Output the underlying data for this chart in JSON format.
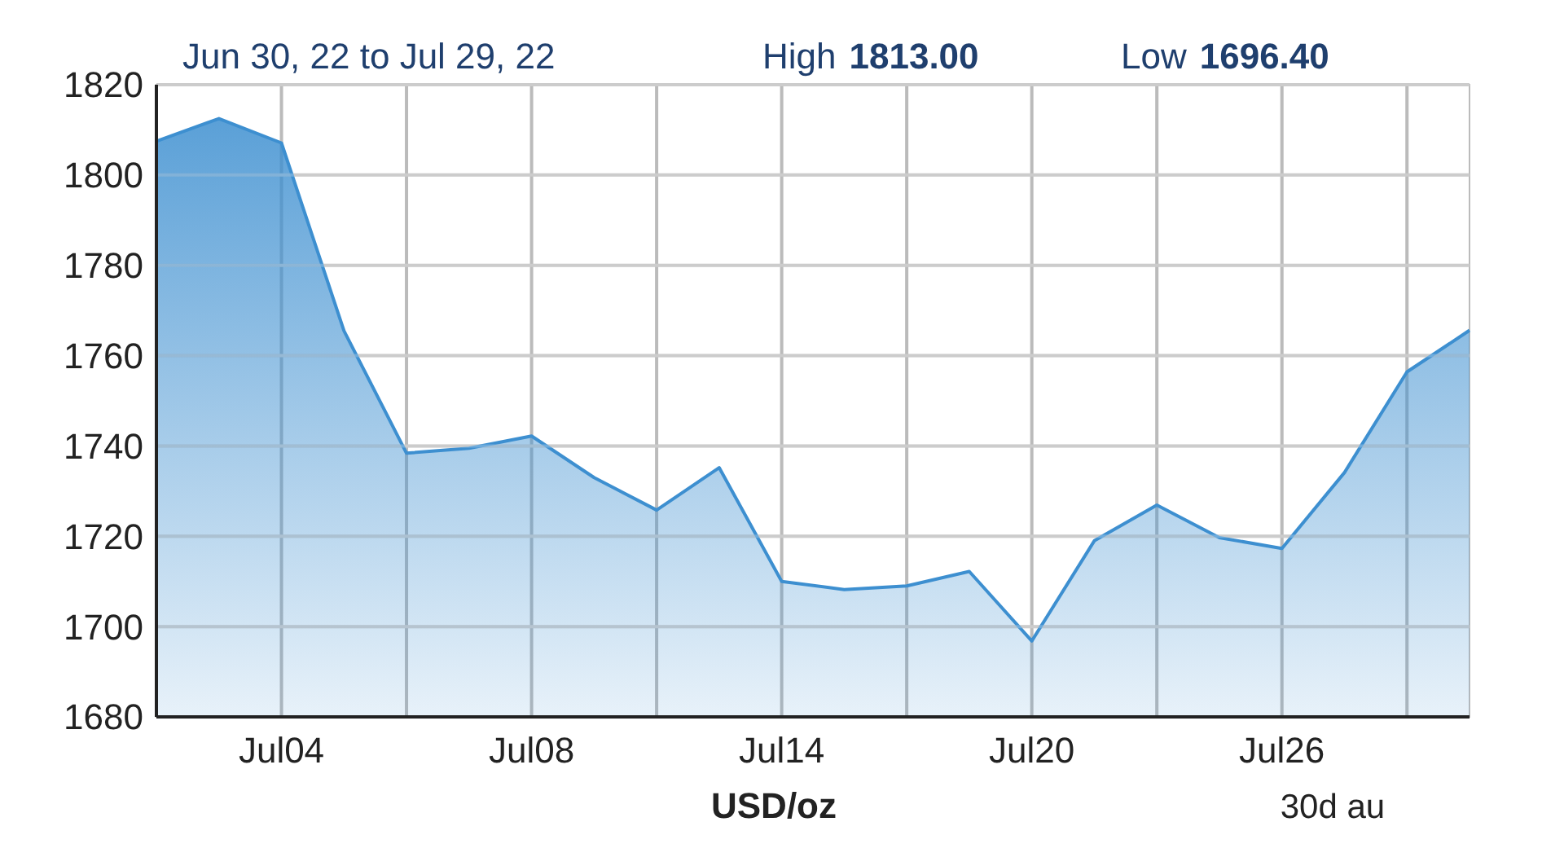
{
  "chart_data": {
    "type": "area",
    "title": "Jun 30, 22 to Jul 29, 22",
    "annotations": [
      "High 1813.00",
      "Low 1696.40",
      "30d au"
    ],
    "xlabel": "USD/oz",
    "categories": [
      null,
      null,
      "Jul04",
      null,
      null,
      null,
      "Jul08",
      null,
      null,
      null,
      "Jul14",
      null,
      null,
      null,
      "Jul20",
      null,
      null,
      null,
      "Jul26",
      null,
      null,
      null
    ],
    "series": [
      {
        "color": "#3d8fd0",
        "values": [
          1807.5,
          1812.5,
          1807.1,
          1765.5,
          1738.4,
          1739.5,
          1742.2,
          1733.0,
          1725.8,
          1735.2,
          1710.0,
          1708.2,
          1709.0,
          1712.2,
          1696.8,
          1719.0,
          1726.9,
          1719.7,
          1717.3,
          1734.1,
          1756.4,
          1765.6
        ]
      }
    ],
    "ylim": [
      1680,
      1820
    ],
    "yticks": [
      1680,
      1700,
      1720,
      1740,
      1760,
      1780,
      1800,
      1820
    ],
    "grid": true
  }
}
